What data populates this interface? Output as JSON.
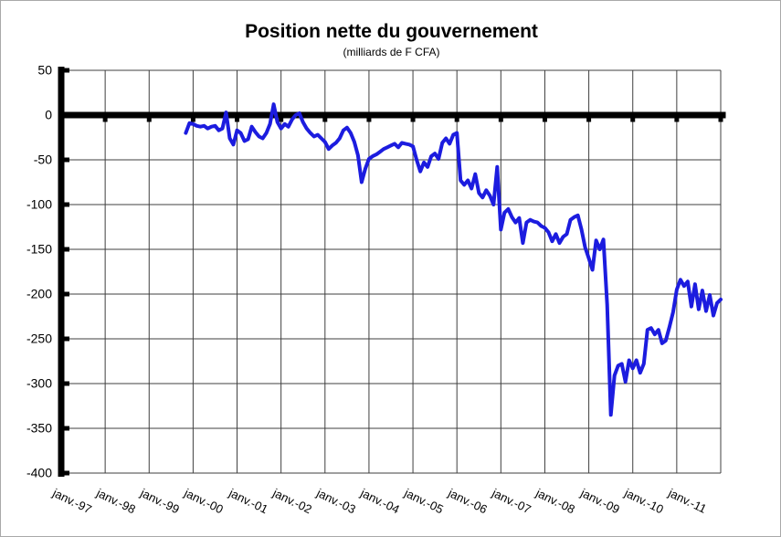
{
  "chart_data": {
    "type": "line",
    "title": "Position nette du gouvernement",
    "subtitle": "(milliards de F CFA)",
    "xlabel": "",
    "ylabel": "",
    "unit": "milliards de F CFA",
    "ylim": [
      -400,
      50
    ],
    "y_ticks": [
      50,
      0,
      -50,
      -100,
      -150,
      -200,
      -250,
      -300,
      -350,
      -400
    ],
    "x_tick_labels": [
      "janv.-97",
      "janv.-98",
      "janv.-99",
      "janv.-00",
      "janv.-01",
      "janv.-02",
      "janv.-03",
      "janv.-04",
      "janv.-05",
      "janv.-06",
      "janv.-07",
      "janv.-08",
      "janv.-09",
      "janv.-10",
      "janv.-11"
    ],
    "x_gridline_years": [
      1997,
      1998,
      1999,
      2000,
      2001,
      2002,
      2003,
      2004,
      2005,
      2006,
      2007,
      2008,
      2009,
      2010,
      2011,
      2012
    ],
    "grid": true,
    "legend": false,
    "line_color": "#1c1cdf",
    "axis_color": "#000000",
    "grid_color": "#3f3f3f",
    "background_color": "#ffffff",
    "series": [
      {
        "name": "Position nette du gouvernement (milliards de F CFA)",
        "frequency": "monthly",
        "start": "nov.-99",
        "end": "janv.-12",
        "values": [
          -20,
          -9,
          -10,
          -12,
          -13,
          -12,
          -15,
          -13,
          -12,
          -17,
          -15,
          3,
          -26,
          -33,
          -17,
          -20,
          -29,
          -27,
          -13,
          -19,
          -24,
          -26,
          -20,
          -10,
          12,
          -8,
          -15,
          -10,
          -13,
          -5,
          0,
          2,
          -8,
          -15,
          -20,
          -24,
          -22,
          -26,
          -30,
          -38,
          -34,
          -31,
          -26,
          -17,
          -14,
          -20,
          -30,
          -45,
          -75,
          -60,
          -49,
          -46,
          -44,
          -41,
          -38,
          -36,
          -34,
          -32,
          -36,
          -31,
          -32,
          -33,
          -35,
          -50,
          -63,
          -53,
          -58,
          -46,
          -43,
          -49,
          -31,
          -26,
          -32,
          -22,
          -20,
          -73,
          -78,
          -73,
          -82,
          -66,
          -87,
          -92,
          -84,
          -90,
          -100,
          -58,
          -128,
          -109,
          -105,
          -114,
          -120,
          -115,
          -143,
          -120,
          -117,
          -119,
          -120,
          -124,
          -126,
          -131,
          -141,
          -133,
          -143,
          -136,
          -133,
          -117,
          -114,
          -112,
          -128,
          -148,
          -160,
          -173,
          -140,
          -150,
          -139,
          -212,
          -335,
          -291,
          -280,
          -278,
          -298,
          -274,
          -283,
          -274,
          -288,
          -278,
          -240,
          -238,
          -245,
          -240,
          -255,
          -252,
          -237,
          -220,
          -195,
          -184,
          -191,
          -186,
          -214,
          -189,
          -217,
          -196,
          -219,
          -201,
          -224,
          -210,
          -206
        ]
      }
    ]
  }
}
